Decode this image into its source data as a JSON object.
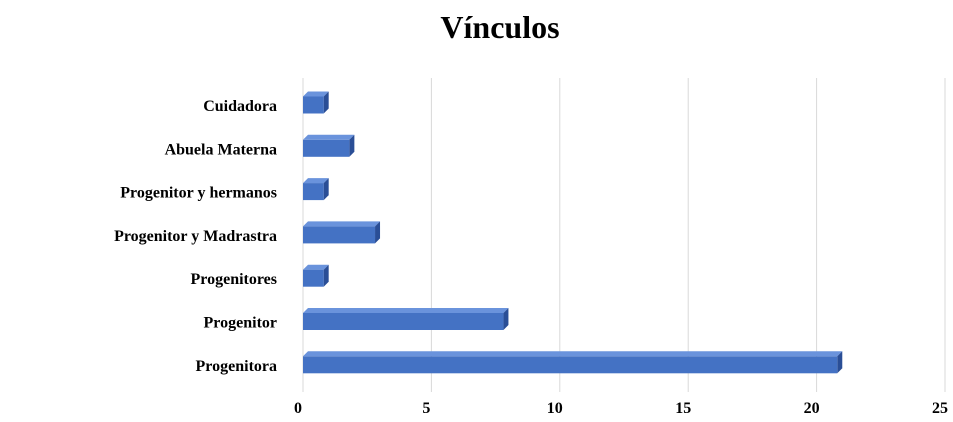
{
  "chart_data": {
    "type": "bar",
    "orientation": "horizontal",
    "title": "Vínculos",
    "categories": [
      "Cuidadora",
      "Abuela Materna",
      "Progenitor y hermanos",
      "Progenitor y Madrastra",
      "Progenitores",
      "Progenitor",
      "Progenitora"
    ],
    "values": [
      1,
      2,
      1,
      3,
      1,
      8,
      21
    ],
    "xlabel": "",
    "ylabel": "",
    "xlim": [
      0,
      25
    ],
    "xticks": [
      "0",
      "5",
      "10",
      "15",
      "20",
      "25"
    ],
    "grid": "vertical",
    "legend": "none",
    "colors": {
      "bar_front": "#4472C4",
      "bar_top": "#6A93DC",
      "bar_side": "#2A4E96",
      "gridline": "#d9d9d9",
      "text": "#000000"
    }
  }
}
